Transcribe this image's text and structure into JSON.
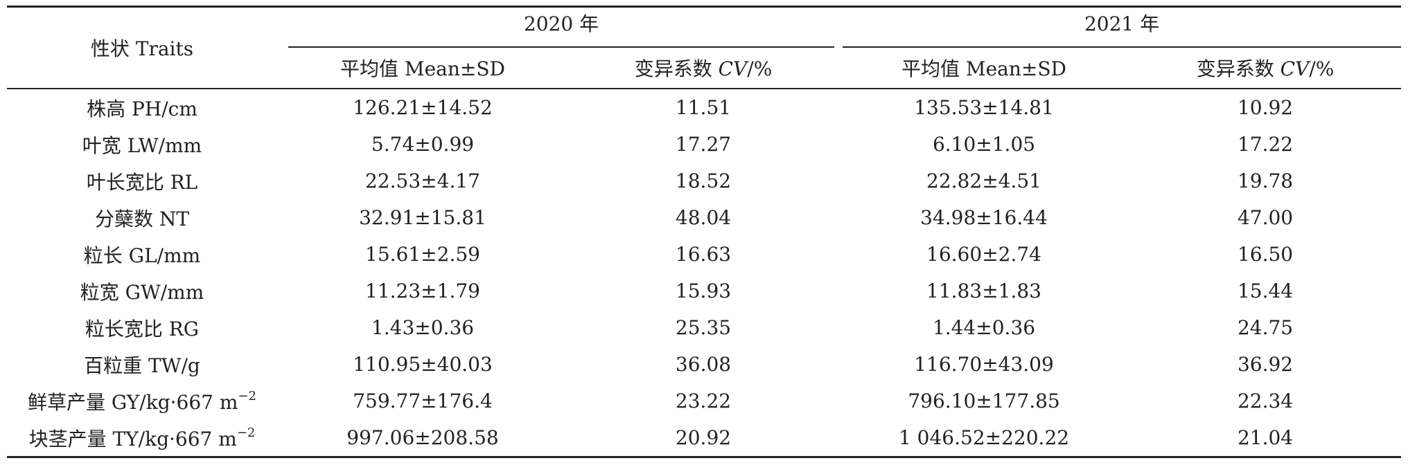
{
  "header": {
    "traits_label": "性状 Traits",
    "year1": "2020 年",
    "year2": "2021 年",
    "mean_label": "平均值 Mean±SD",
    "cv_label_pre": "变异系数 ",
    "cv_label_em": "CV",
    "cv_label_post": "/%"
  },
  "rows": [
    {
      "trait": "株高 PH/cm",
      "m2020": "126.21±14.52",
      "cv2020": "11.51",
      "m2021": "135.53±14.81",
      "cv2021": "10.92"
    },
    {
      "trait": "叶宽 LW/mm",
      "m2020": "5.74±0.99",
      "cv2020": "17.27",
      "m2021": "6.10±1.05",
      "cv2021": "17.22"
    },
    {
      "trait": "叶长宽比 RL",
      "m2020": "22.53±4.17",
      "cv2020": "18.52",
      "m2021": "22.82±4.51",
      "cv2021": "19.78"
    },
    {
      "trait": "分蘖数 NT",
      "m2020": "32.91±15.81",
      "cv2020": "48.04",
      "m2021": "34.98±16.44",
      "cv2021": "47.00"
    },
    {
      "trait": "粒长 GL/mm",
      "m2020": "15.61±2.59",
      "cv2020": "16.63",
      "m2021": "16.60±2.74",
      "cv2021": "16.50"
    },
    {
      "trait": "粒宽 GW/mm",
      "m2020": "11.23±1.79",
      "cv2020": "15.93",
      "m2021": "11.83±1.83",
      "cv2021": "15.44"
    },
    {
      "trait": "粒长宽比 RG",
      "m2020": "1.43±0.36",
      "cv2020": "25.35",
      "m2021": "1.44±0.36",
      "cv2021": "24.75"
    },
    {
      "trait": "百粒重 TW/g",
      "m2020": "110.95±40.03",
      "cv2020": "36.08",
      "m2021": "116.70±43.09",
      "cv2021": "36.92"
    },
    {
      "trait": "鲜草产量 GY/kg·667 m",
      "trait_sup": "−2",
      "m2020": "759.77±176.4",
      "cv2020": "23.22",
      "m2021": "796.10±177.85",
      "cv2021": "22.34"
    },
    {
      "trait": "块茎产量 TY/kg·667 m",
      "trait_sup": "−2",
      "m2020": "997.06±208.58",
      "cv2020": "20.92",
      "m2021": "1 046.52±220.22",
      "cv2021": "21.04"
    }
  ]
}
